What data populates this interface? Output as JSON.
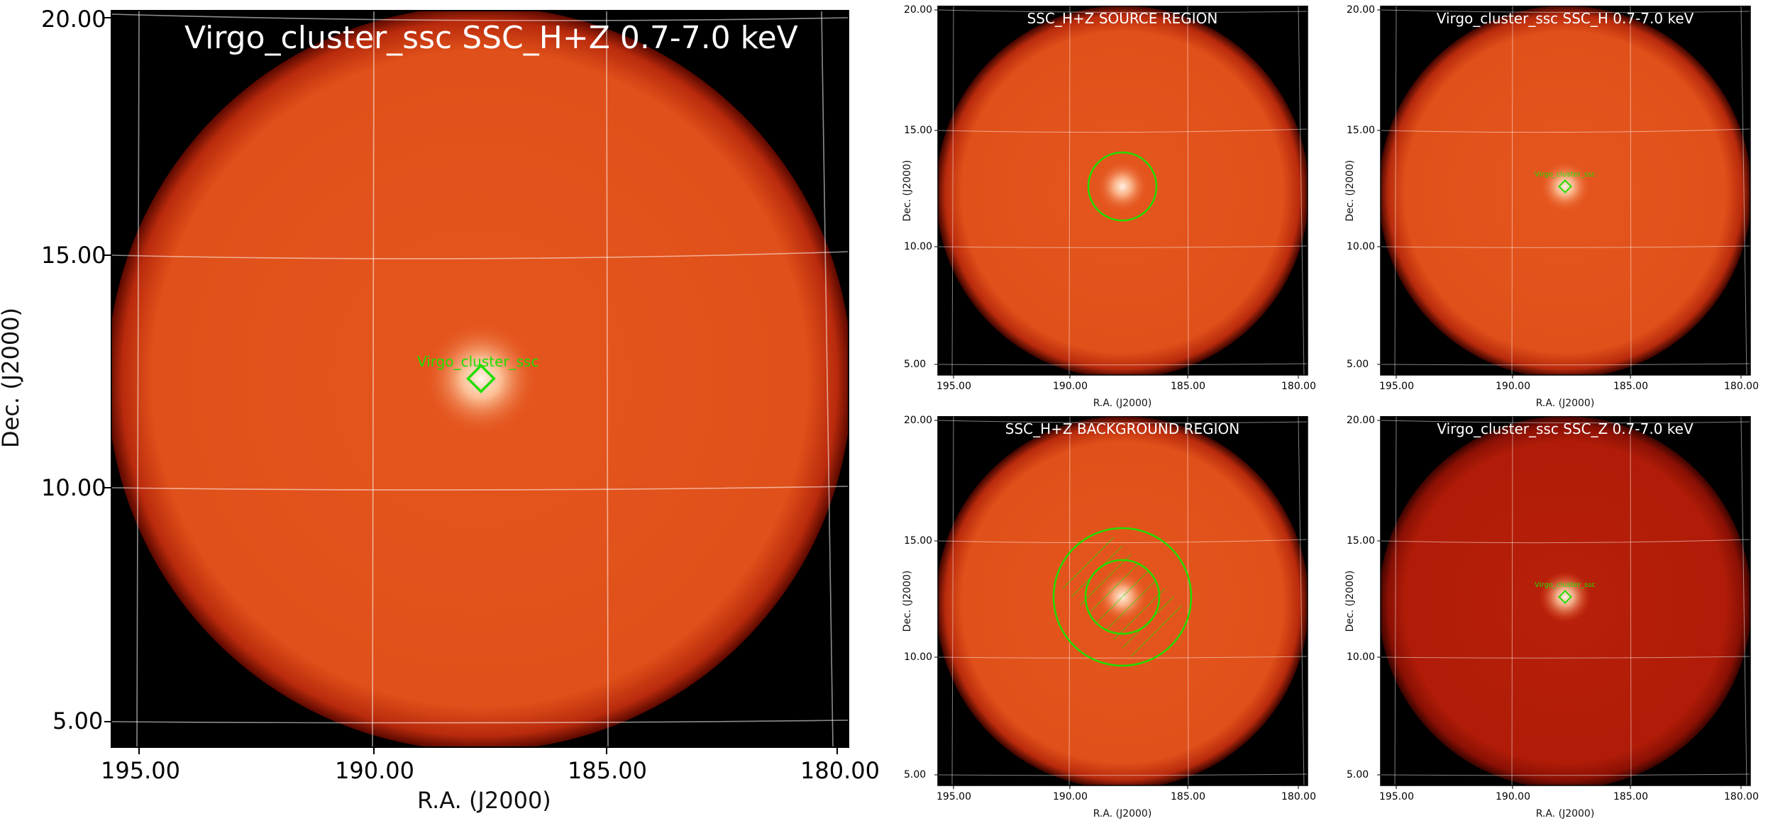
{
  "main": {
    "title": "Virgo_cluster_ssc SSC_H+Z 0.7-7.0 keV",
    "source_label": "Virgo_cluster_ssc",
    "xlabel": "R.A. (J2000)",
    "ylabel": "Dec. (J2000)",
    "xticks": [
      "195.00",
      "190.00",
      "185.00",
      "180.00"
    ],
    "yticks": [
      "20.00",
      "15.00",
      "10.00",
      "5.00"
    ]
  },
  "panels": [
    {
      "title": "SSC_H+Z SOURCE REGION",
      "xlabel": "R.A. (J2000)",
      "ylabel": "Dec. (J2000)",
      "xticks": [
        "195.00",
        "190.00",
        "185.00",
        "180.00"
      ],
      "yticks": [
        "20.00",
        "15.00",
        "10.00",
        "5.00"
      ]
    },
    {
      "title": "Virgo_cluster_ssc SSC_H 0.7-7.0 keV",
      "label": "Virgo_cluster_ssc",
      "xlabel": "R.A. (J2000)",
      "ylabel": "Dec. (J2000)",
      "xticks": [
        "195.00",
        "190.00",
        "185.00",
        "180.00"
      ],
      "yticks": [
        "20.00",
        "15.00",
        "10.00",
        "5.00"
      ]
    },
    {
      "title": "SSC_H+Z BACKGROUND REGION",
      "xlabel": "R.A. (J2000)",
      "ylabel": "Dec. (J2000)",
      "xticks": [
        "195.00",
        "190.00",
        "185.00",
        "180.00"
      ],
      "yticks": [
        "20.00",
        "15.00",
        "10.00",
        "5.00"
      ]
    },
    {
      "title": "Virgo_cluster_ssc SSC_Z 0.7-7.0 keV",
      "label": "Virgo_cluster_ssc",
      "xlabel": "R.A. (J2000)",
      "ylabel": "Dec. (J2000)",
      "xticks": [
        "195.00",
        "190.00",
        "185.00",
        "180.00"
      ],
      "yticks": [
        "20.00",
        "15.00",
        "10.00",
        "5.00"
      ]
    }
  ],
  "colors": {
    "disk": "#e0501c",
    "disk_dark": "#a81a08",
    "marker": "#22dd00",
    "grid": "#ffffff"
  }
}
